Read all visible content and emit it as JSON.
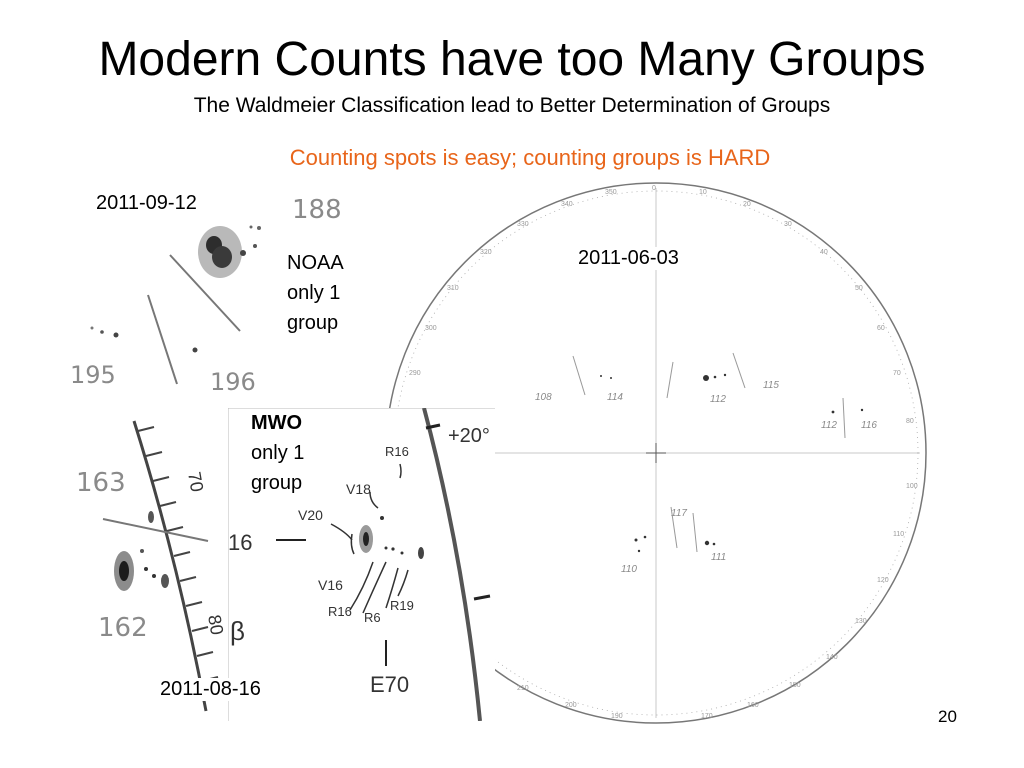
{
  "slide": {
    "title": "Modern Counts have too Many Groups",
    "subtitle": "The Waldmeier Classification lead to Better Determination of Groups",
    "tagline": "Counting spots is easy; counting groups is HARD",
    "page_number": "20"
  },
  "panels": {
    "sep12": {
      "date": "2011-09-12",
      "note_line1": "NOAA",
      "note_line2": "only 1",
      "note_line3": "group",
      "sketch_labels": [
        "188",
        "195",
        "196"
      ]
    },
    "aug16": {
      "date": "2011-08-16",
      "sketch_labels": [
        "163",
        "162",
        "70",
        "80"
      ]
    },
    "mwo": {
      "note_bold": "MWO",
      "note_line2": "only 1",
      "note_line3": "group",
      "sketch_labels": [
        "+20°",
        "16",
        "V20",
        "V18",
        "R16",
        "V16",
        "R16",
        "R6",
        "R19",
        "E70",
        "β"
      ]
    },
    "jun03": {
      "date": "2011-06-03",
      "group_labels": [
        "108",
        "114",
        "112",
        "115",
        "112",
        "116",
        "117",
        "111",
        "110"
      ]
    }
  },
  "colors": {
    "tagline": "#e8651a",
    "sketch": "#8a8a8a"
  }
}
